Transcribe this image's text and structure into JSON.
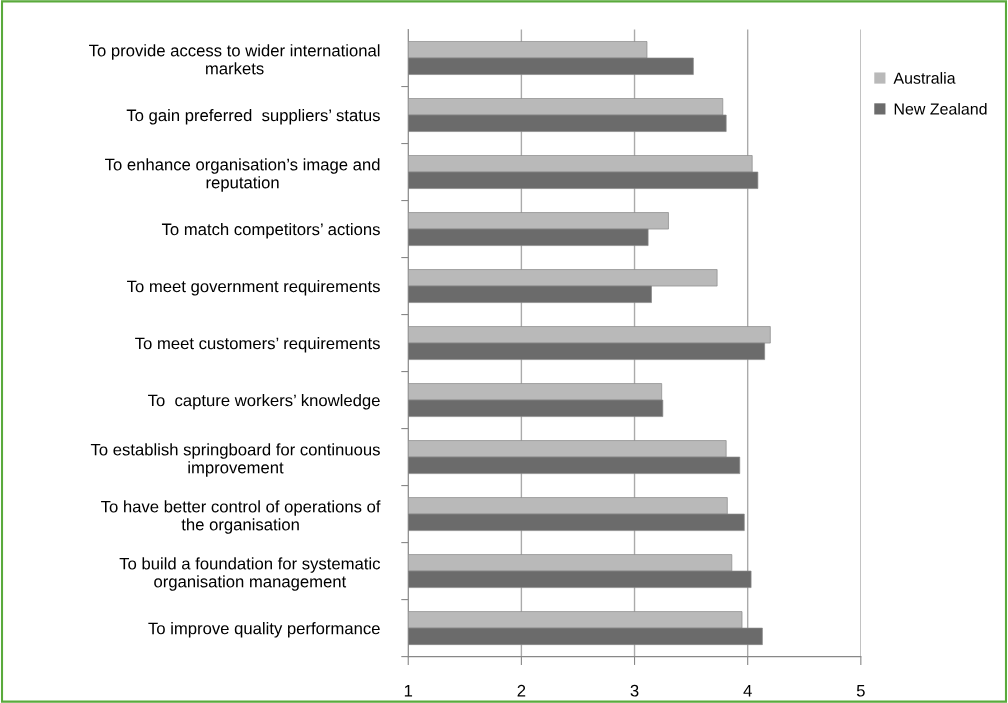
{
  "chart_data": {
    "type": "bar",
    "orientation": "horizontal",
    "categories": [
      "To provide access to wider international\nmarkets",
      "To gain preferred  suppliers’ status",
      "To enhance organisation’s image and\nreputation",
      "To match competitors’ actions",
      "To meet government requirements",
      "To meet customers’ requirements",
      "To  capture workers’ knowledge",
      "To establish springboard for continuous\nimprovement",
      "To have better control of operations of\nthe organisation",
      "To build a foundation for systematic\norganisation management",
      "To improve quality performance"
    ],
    "series": [
      {
        "name": "Australia",
        "color": "#b9b9b9",
        "values": [
          3.11,
          3.78,
          4.04,
          3.3,
          3.73,
          4.2,
          3.24,
          3.81,
          3.82,
          3.86,
          3.95
        ]
      },
      {
        "name": "New Zealand",
        "color": "#6b6b6b",
        "values": [
          3.52,
          3.81,
          4.09,
          3.12,
          3.15,
          4.15,
          3.25,
          3.93,
          3.97,
          4.03,
          4.13
        ]
      }
    ],
    "xlim": [
      1,
      5
    ],
    "xticks": [
      1,
      2,
      3,
      4,
      5
    ],
    "grid": "x",
    "legend": "right"
  }
}
